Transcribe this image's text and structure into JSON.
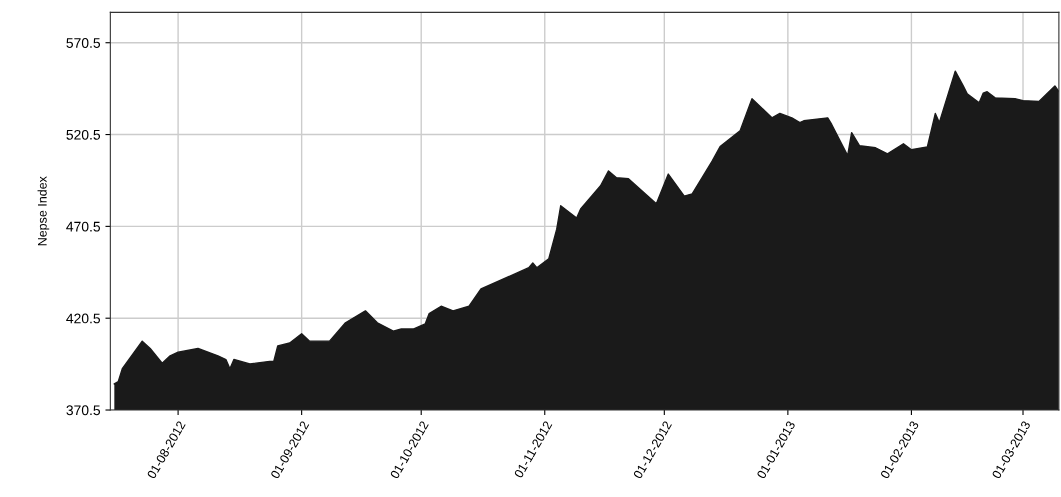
{
  "chart_data": {
    "type": "area",
    "ylabel": "Nepse Index",
    "grid": true,
    "legend": false,
    "x": [
      "2012-07-16",
      "2012-07-17",
      "2012-07-18",
      "2012-07-23",
      "2012-07-25",
      "2012-07-28",
      "2012-07-30",
      "2012-08-01",
      "2012-08-06",
      "2012-08-11",
      "2012-08-13",
      "2012-08-14",
      "2012-08-15",
      "2012-08-19",
      "2012-08-24",
      "2012-08-25",
      "2012-08-26",
      "2012-08-29",
      "2012-09-01",
      "2012-09-03",
      "2012-09-08",
      "2012-09-12",
      "2012-09-17",
      "2012-09-20",
      "2012-09-24",
      "2012-09-26",
      "2012-09-29",
      "2012-10-02",
      "2012-10-03",
      "2012-10-06",
      "2012-10-09",
      "2012-10-13",
      "2012-10-16",
      "2012-10-28",
      "2012-10-29",
      "2012-10-30",
      "2012-11-02",
      "2012-11-04",
      "2012-11-05",
      "2012-11-09",
      "2012-11-10",
      "2012-11-15",
      "2012-11-17",
      "2012-11-19",
      "2012-11-22",
      "2012-11-29",
      "2012-12-02",
      "2012-12-06",
      "2012-12-08",
      "2012-12-13",
      "2012-12-15",
      "2012-12-20",
      "2012-12-23",
      "2012-12-28",
      "2012-12-30",
      "2013-01-02",
      "2013-01-04",
      "2013-01-05",
      "2013-01-11",
      "2013-01-12",
      "2013-01-16",
      "2013-01-17",
      "2013-01-19",
      "2013-01-23",
      "2013-01-26",
      "2013-01-30",
      "2013-02-01",
      "2013-02-05",
      "2013-02-07",
      "2013-02-08",
      "2013-02-12",
      "2013-02-14",
      "2013-02-15",
      "2013-02-18",
      "2013-02-19",
      "2013-02-20",
      "2013-02-22",
      "2013-02-27",
      "2013-03-01",
      "2013-03-05",
      "2013-03-09",
      "2013-03-10"
    ],
    "series": [
      {
        "color": "#1a1a1a",
        "values": [
          384.7,
          386,
          393,
          408,
          404,
          396,
          400,
          402,
          404,
          400,
          398,
          393,
          398,
          395.6,
          397,
          397,
          405.4,
          407,
          412,
          408,
          408,
          418,
          424.5,
          418,
          413.5,
          414.6,
          414.6,
          417.4,
          423,
          427,
          424.5,
          427,
          436.4,
          448,
          450.6,
          448,
          452.8,
          469,
          481.7,
          475,
          480,
          492.6,
          500.7,
          497,
          496.4,
          482.8,
          499,
          487,
          488.2,
          506,
          514,
          522.5,
          540,
          529.6,
          532,
          529.6,
          527,
          528,
          529.6,
          526,
          509,
          521.5,
          514.4,
          513.3,
          510,
          515.5,
          512.2,
          513.8,
          532,
          527,
          555,
          547,
          542.7,
          537.8,
          543,
          543.8,
          540.5,
          540,
          539,
          538.5,
          547,
          544
        ]
      }
    ],
    "xlim": [
      "2012-07-15",
      "2013-03-10"
    ],
    "xticks": [
      {
        "value": "2012-08-01",
        "label": "01-08-2012"
      },
      {
        "value": "2012-09-01",
        "label": "01-09-2012"
      },
      {
        "value": "2012-10-01",
        "label": "01-10-2012"
      },
      {
        "value": "2012-11-01",
        "label": "01-11-2012"
      },
      {
        "value": "2012-12-01",
        "label": "01-12-2012"
      },
      {
        "value": "2013-01-01",
        "label": "01-01-2013"
      },
      {
        "value": "2013-02-01",
        "label": "01-02-2013"
      },
      {
        "value": "2013-03-01",
        "label": "01-03-2013"
      }
    ],
    "ylim": [
      370.5,
      587
    ],
    "yticks": [
      {
        "value": 370.5,
        "label": "370.5"
      },
      {
        "value": 420.5,
        "label": "420.5"
      },
      {
        "value": 470.5,
        "label": "470.5"
      },
      {
        "value": 520.5,
        "label": "520.5"
      },
      {
        "value": 570.5,
        "label": "570.5"
      }
    ]
  }
}
